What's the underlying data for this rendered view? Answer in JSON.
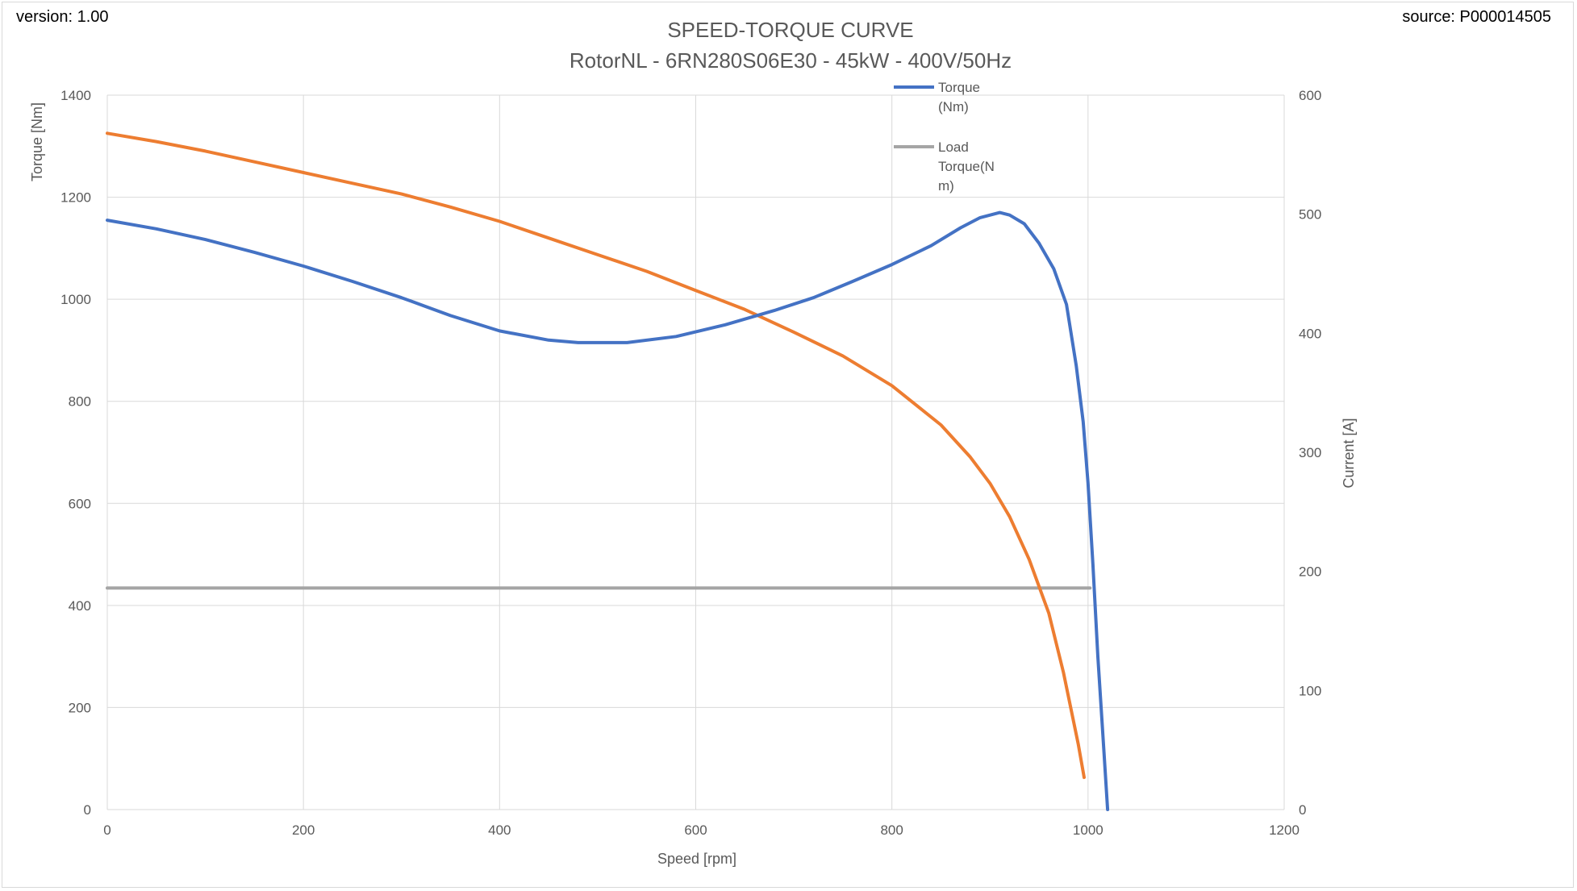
{
  "header": {
    "version": "version: 1.00",
    "source": "source: P000014505"
  },
  "chart_data": {
    "type": "line",
    "title": "SPEED-TORQUE CURVE",
    "subtitle": "RotorNL - 6RN280S06E30 - 45kW - 400V/50Hz",
    "xlabel": "Speed [rpm]",
    "ylabel": "Torque [Nm]",
    "y2label": "Current [A]",
    "xlim": [
      0,
      1200
    ],
    "ylim": [
      0,
      1400
    ],
    "y2lim": [
      0,
      600
    ],
    "xticks": [
      "0",
      "200",
      "400",
      "600",
      "800",
      "1000",
      "1200"
    ],
    "yticks": [
      "0",
      "200",
      "400",
      "600",
      "800",
      "1000",
      "1200",
      "1400"
    ],
    "y2ticks": [
      "0",
      "100",
      "200",
      "300",
      "400",
      "500",
      "600"
    ],
    "grid": true,
    "legend_position": "top-right inside",
    "series": [
      {
        "name": "Torque\n(Nm)",
        "axis": "left",
        "color": "#4472c4",
        "points": [
          [
            0,
            1155
          ],
          [
            50,
            1138
          ],
          [
            100,
            1117
          ],
          [
            150,
            1092
          ],
          [
            200,
            1065
          ],
          [
            250,
            1035
          ],
          [
            300,
            1003
          ],
          [
            350,
            968
          ],
          [
            400,
            938
          ],
          [
            450,
            920
          ],
          [
            480,
            915
          ],
          [
            530,
            915
          ],
          [
            580,
            927
          ],
          [
            630,
            950
          ],
          [
            680,
            978
          ],
          [
            720,
            1003
          ],
          [
            760,
            1035
          ],
          [
            800,
            1068
          ],
          [
            840,
            1105
          ],
          [
            870,
            1140
          ],
          [
            890,
            1160
          ],
          [
            910,
            1170
          ],
          [
            920,
            1165
          ],
          [
            935,
            1148
          ],
          [
            950,
            1110
          ],
          [
            965,
            1060
          ],
          [
            978,
            990
          ],
          [
            988,
            870
          ],
          [
            995,
            760
          ],
          [
            1000,
            640
          ],
          [
            1005,
            480
          ],
          [
            1010,
            300
          ],
          [
            1016,
            120
          ],
          [
            1020,
            0
          ]
        ]
      },
      {
        "name": "Load\nTorque(N\nm)",
        "axis": "left",
        "color": "#a5a5a5",
        "points": [
          [
            0,
            434
          ],
          [
            1002,
            434
          ]
        ]
      },
      {
        "name": "Current",
        "axis": "right",
        "color": "#ed7d31",
        "points": [
          [
            0,
            568
          ],
          [
            50,
            561
          ],
          [
            100,
            553
          ],
          [
            150,
            544
          ],
          [
            200,
            535
          ],
          [
            250,
            526
          ],
          [
            300,
            517
          ],
          [
            350,
            506
          ],
          [
            400,
            494
          ],
          [
            450,
            480
          ],
          [
            500,
            466
          ],
          [
            550,
            452
          ],
          [
            600,
            436
          ],
          [
            650,
            420
          ],
          [
            700,
            401
          ],
          [
            750,
            381
          ],
          [
            800,
            356
          ],
          [
            850,
            323
          ],
          [
            880,
            296
          ],
          [
            900,
            274
          ],
          [
            920,
            246
          ],
          [
            940,
            210
          ],
          [
            960,
            165
          ],
          [
            975,
            115
          ],
          [
            985,
            75
          ],
          [
            990,
            55
          ],
          [
            996,
            27
          ]
        ]
      }
    ]
  }
}
